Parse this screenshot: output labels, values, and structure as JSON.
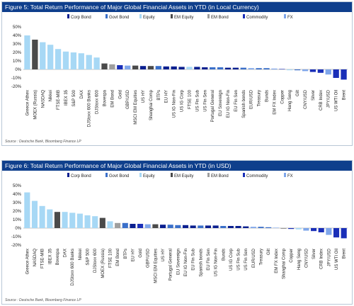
{
  "colors": {
    "Corp Bond": "#0a1f8f",
    "Govt Bond": "#3a6fc9",
    "Equity": "#a7d8f5",
    "EM Equity": "#4a4a4a",
    "EM Bond": "#9e9e9e",
    "Commodity": "#1a2fb8",
    "FX": "#7fa6ea",
    "title_bar": "#0f3f8c"
  },
  "figures": [
    {
      "title": "Figure 5: Total Return Performance of Major Global Financial Assets in YTD (in Local Currency)",
      "source": "Source : Deutsche Bank, Bloomberg Finance LP"
    },
    {
      "title": "Figure 6: Total Return Performance of Major Global Financial Assets in YTD (in USD)",
      "source": "Source : Deutsche Bank, Bloomberg Finance LP"
    }
  ],
  "chart_data": [
    {
      "type": "bar",
      "title": "Figure 5: Total Return Performance of Major Global Financial Assets in YTD (in Local Currency)",
      "ylim": [
        -20,
        50
      ],
      "yticks": [
        "50%",
        "40%",
        "30%",
        "20%",
        "10%",
        "0%",
        "-10%",
        "-20%"
      ],
      "grid": false,
      "legend": [
        "Corp Bond",
        "Govt Bond",
        "Equity",
        "EM Equity",
        "EM Bond",
        "Commodity",
        "FX"
      ],
      "legend_position": "top",
      "categories": [
        "Greece Athex",
        "MOEX (Russia)",
        "NASDAQ",
        "Nikkei",
        "FTSE-MIB",
        "IBEX 35",
        "S&P 500",
        "DAX",
        "DJStoxx 600 Banks",
        "DJStoxx 600",
        "Bovespa",
        "EM Bond",
        "Gold",
        "GBP/USD",
        "MSCI EM Equities",
        "US HY",
        "Shanghai Comp",
        "BTPs",
        "EU HY",
        "US IG Non-Fin",
        "US IG Corp",
        "FTSE 100",
        "US Fin Sub",
        "US Fin Sen",
        "Portugal General",
        "EU Sovereign",
        "EU IG Non-Fin",
        "EU Fin Sen",
        "Spanish bonds",
        "EUR/USD",
        "Treasury",
        "Bunds",
        "EM FX Index",
        "Copper",
        "Hang Seng",
        "Gilt",
        "CNY/USD",
        "Silver",
        "CRB Index",
        "JPY/USD",
        "US WTI Oil",
        "Brent"
      ],
      "values": [
        40,
        35,
        32,
        29,
        24,
        21,
        20,
        19,
        17,
        14,
        7,
        6,
        5,
        4.5,
        4.5,
        4,
        4,
        4,
        3.5,
        3.5,
        3,
        3,
        3,
        2.5,
        2.5,
        2.5,
        2,
        2,
        2,
        1.5,
        1.5,
        1.5,
        1,
        0.5,
        -1,
        -1,
        -2,
        -3,
        -4,
        -6,
        -10,
        -12
      ],
      "asset_classes": [
        "Equity",
        "EM Equity",
        "Equity",
        "Equity",
        "Equity",
        "Equity",
        "Equity",
        "Equity",
        "Equity",
        "Equity",
        "EM Equity",
        "EM Bond",
        "Commodity",
        "FX",
        "EM Equity",
        "Corp Bond",
        "EM Equity",
        "Govt Bond",
        "Corp Bond",
        "Corp Bond",
        "Corp Bond",
        "Equity",
        "Corp Bond",
        "Corp Bond",
        "Govt Bond",
        "Govt Bond",
        "Corp Bond",
        "Corp Bond",
        "Govt Bond",
        "FX",
        "Govt Bond",
        "Govt Bond",
        "FX",
        "Commodity",
        "Equity",
        "Govt Bond",
        "FX",
        "Commodity",
        "Commodity",
        "FX",
        "Commodity",
        "Commodity"
      ]
    },
    {
      "type": "bar",
      "title": "Figure 6: Total Return Performance of Major Global Financial Assets in YTD (in USD)",
      "ylim": [
        -20,
        50
      ],
      "yticks": [
        "50%",
        "40%",
        "30%",
        "20%",
        "10%",
        "0%",
        "-10%",
        "-20%"
      ],
      "grid": false,
      "legend": [
        "Corp Bond",
        "Govt Bond",
        "Equity",
        "EM Equity",
        "EM Bond",
        "Commodity",
        "FX"
      ],
      "legend_position": "top",
      "categories": [
        "Greece Athex",
        "NASDAQ",
        "FTSE-MIB",
        "IBEX 35",
        "Bovespa",
        "DAX",
        "DJStoxx 600 Banks",
        "Nikkei",
        "S&P 500",
        "DJStoxx 600",
        "MOEX (Russia)",
        "FTSE 100",
        "EM Bond",
        "BTPs",
        "EU HY",
        "Gold",
        "GBP/USD",
        "MSCI EM Equities",
        "US HY",
        "Portugal General",
        "EU Sovereign",
        "EU IG Non-Fin",
        "EU Fin Sub",
        "Spanish bonds",
        "EU Fin Sen",
        "US IG Non-Fin",
        "Bunds",
        "US IG Corp",
        "US Fin Sub",
        "US Fin Sen",
        "EUR/USD",
        "Treasury",
        "Gilt",
        "EM FX Index",
        "Shanghai Comp",
        "Copper",
        "Hang Seng",
        "CNY/USD",
        "Silver",
        "CRB Index",
        "JPY/USD",
        "US WTI Oil",
        "Brent"
      ],
      "values": [
        42,
        32,
        26,
        22,
        19,
        19,
        18,
        17,
        15,
        14,
        12,
        8,
        6,
        6,
        5,
        5,
        4.5,
        4.5,
        4,
        4,
        3.5,
        3.5,
        3,
        3,
        3,
        3,
        2.5,
        2.5,
        2.5,
        2,
        1.5,
        1.5,
        1,
        0.5,
        -0.5,
        -1,
        -1.5,
        -3,
        -3.5,
        -5,
        -8,
        -11,
        -12
      ],
      "asset_classes": [
        "Equity",
        "Equity",
        "Equity",
        "Equity",
        "EM Equity",
        "Equity",
        "Equity",
        "Equity",
        "Equity",
        "Equity",
        "EM Equity",
        "Equity",
        "EM Bond",
        "Govt Bond",
        "Corp Bond",
        "Commodity",
        "FX",
        "EM Equity",
        "Corp Bond",
        "Govt Bond",
        "Govt Bond",
        "Corp Bond",
        "Corp Bond",
        "Govt Bond",
        "Corp Bond",
        "Corp Bond",
        "Govt Bond",
        "Corp Bond",
        "Corp Bond",
        "Corp Bond",
        "FX",
        "Govt Bond",
        "Govt Bond",
        "FX",
        "EM Equity",
        "Commodity",
        "Equity",
        "FX",
        "Commodity",
        "Commodity",
        "FX",
        "Commodity",
        "Commodity"
      ]
    }
  ]
}
